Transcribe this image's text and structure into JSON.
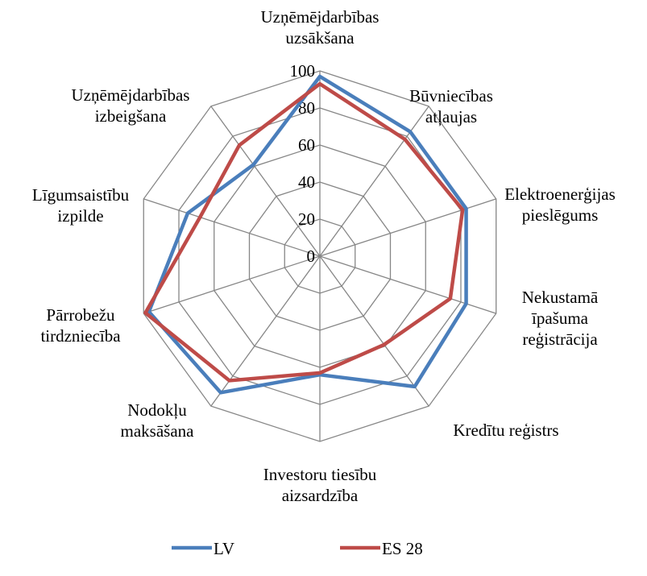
{
  "chart_data": {
    "type": "radar",
    "categories": [
      "Uzņēmējdarbības\nuzsākšana",
      "Būvniecības\natļaujas",
      "Elektroenerģijas\npieslēgums",
      "Nekustamā\nīpašuma\nreģistrācija",
      "Kredītu reģistrs",
      "Investoru tiesību\naizsardzība",
      "Nodokļu\nmaksāšana",
      "Pārrobežu\ntirdzniecība",
      "Līgumsaistību\nizpilde",
      "Uzņēmējdarbības\nizbeigšana"
    ],
    "series": [
      {
        "name": "LV",
        "color": "#4a7ebb",
        "values": [
          97,
          83,
          83,
          83,
          87,
          64,
          91,
          97,
          75,
          61
        ]
      },
      {
        "name": "ES 28",
        "color": "#be4b48",
        "values": [
          93,
          78,
          81,
          74,
          59,
          63,
          83,
          99,
          68,
          74
        ]
      }
    ],
    "ylim": [
      0,
      100
    ],
    "yticks": [
      0,
      20,
      40,
      60,
      80,
      100
    ],
    "grid": true,
    "legend": "bottom"
  }
}
